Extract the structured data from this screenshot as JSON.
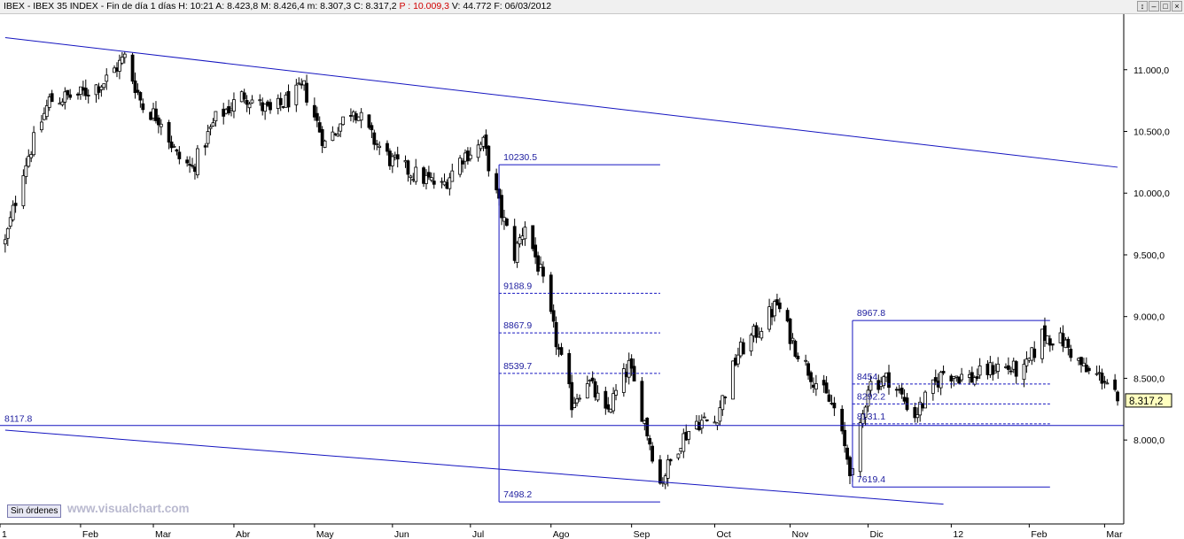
{
  "titlebar": {
    "parts": [
      {
        "text": "IBEX - IBEX 35 INDEX - Fin de día 1 días  H: 10:21  A: 8.423,8  M: 8.426,4  m: 8.307,3  C: 8.317,2  ",
        "color": "#000000"
      },
      {
        "text": "P : 10.009,3",
        "color": "#d00000"
      },
      {
        "text": "  V: 44.772  F: 06/03/2012",
        "color": "#000000"
      }
    ],
    "buttons": [
      "↕",
      "–",
      "□",
      "×"
    ]
  },
  "footer": {
    "sin_ordenes": "Sin órdenes",
    "watermark": "www.visualchart.com"
  },
  "colors": {
    "line": "#1515c0",
    "label": "#2020a0",
    "candle": "#000000",
    "last_price_bg": "#ffffc0"
  },
  "chart_data": {
    "type": "candlestick",
    "ylim": [
      7500,
      11500
    ],
    "y_ticks": [
      {
        "value": 11000,
        "label": "11.000,0"
      },
      {
        "value": 10500,
        "label": "10.500,0"
      },
      {
        "value": 10000,
        "label": "10.000,0"
      },
      {
        "value": 9500,
        "label": "9.500,0"
      },
      {
        "value": 9000,
        "label": "9.000,0"
      },
      {
        "value": 8500,
        "label": "8.500,0"
      },
      {
        "value": 8000,
        "label": "8.000,0"
      }
    ],
    "x_ticks": [
      {
        "label": "1",
        "date": "2011-01-03"
      },
      {
        "label": "Feb",
        "date": "2011-02-01"
      },
      {
        "label": "Mar",
        "date": "2011-03-01"
      },
      {
        "label": "Abr",
        "date": "2011-04-01"
      },
      {
        "label": "May",
        "date": "2011-05-02"
      },
      {
        "label": "Jun",
        "date": "2011-06-01"
      },
      {
        "label": "Jul",
        "date": "2011-07-01"
      },
      {
        "label": "Ago",
        "date": "2011-08-01"
      },
      {
        "label": "Sep",
        "date": "2011-09-01"
      },
      {
        "label": "Oct",
        "date": "2011-10-03"
      },
      {
        "label": "Nov",
        "date": "2011-11-01"
      },
      {
        "label": "Dic",
        "date": "2011-12-01"
      },
      {
        "label": "12",
        "date": "2012-01-02"
      },
      {
        "label": "Feb",
        "date": "2012-02-01"
      },
      {
        "label": "Mar",
        "date": "2012-03-01"
      }
    ],
    "last_price": {
      "value": 8317.2,
      "label": "8.317,2"
    },
    "horizontal_line": {
      "value": 8117.8,
      "label": "8117.8"
    },
    "trendlines": [
      {
        "from": [
          "2011-01-03",
          11260
        ],
        "to": [
          "2012-03-06",
          10210
        ]
      },
      {
        "from": [
          "2011-01-03",
          8080
        ],
        "to": [
          "2011-12-30",
          7480
        ]
      }
    ],
    "fibo_boxes": [
      {
        "from_date": "2011-07-12",
        "to_date": "2011-09-12",
        "high": 10230.5,
        "low": 7498.2,
        "high_label": "10230.5",
        "low_label": "7498.2",
        "levels": [
          {
            "value": 9188.9,
            "label": "9188.9"
          },
          {
            "value": 8867.9,
            "label": "8867.9"
          },
          {
            "value": 8539.7,
            "label": "8539.7"
          }
        ]
      },
      {
        "from_date": "2011-11-25",
        "to_date": "2012-02-09",
        "high": 8967.8,
        "low": 7619.4,
        "high_label": "8967.8",
        "low_label": "7619.4",
        "levels": [
          {
            "value": 8454,
            "label": "8454"
          },
          {
            "value": 8292.2,
            "label": "8292.2"
          },
          {
            "value": 8131.1,
            "label": "8131.1"
          }
        ]
      }
    ],
    "closes_anchor": [
      [
        "2011-01-03",
        9600
      ],
      [
        "2011-01-10",
        10200
      ],
      [
        "2011-01-20",
        10750
      ],
      [
        "2011-02-01",
        10800
      ],
      [
        "2011-02-10",
        10900
      ],
      [
        "2011-02-18",
        11100
      ],
      [
        "2011-02-25",
        10700
      ],
      [
        "2011-03-04",
        10600
      ],
      [
        "2011-03-10",
        10300
      ],
      [
        "2011-03-16",
        10200
      ],
      [
        "2011-03-25",
        10600
      ],
      [
        "2011-04-05",
        10800
      ],
      [
        "2011-04-15",
        10650
      ],
      [
        "2011-04-28",
        10850
      ],
      [
        "2011-05-06",
        10400
      ],
      [
        "2011-05-17",
        10700
      ],
      [
        "2011-05-24",
        10450
      ],
      [
        "2011-06-01",
        10250
      ],
      [
        "2011-06-10",
        10150
      ],
      [
        "2011-06-20",
        10050
      ],
      [
        "2011-06-28",
        10300
      ],
      [
        "2011-07-06",
        10400
      ],
      [
        "2011-07-12",
        9900
      ],
      [
        "2011-07-18",
        9500
      ],
      [
        "2011-07-22",
        9750
      ],
      [
        "2011-07-28",
        9350
      ],
      [
        "2011-08-03",
        8800
      ],
      [
        "2011-08-09",
        8300
      ],
      [
        "2011-08-15",
        8500
      ],
      [
        "2011-08-22",
        8200
      ],
      [
        "2011-08-31",
        8600
      ],
      [
        "2011-09-06",
        8150
      ],
      [
        "2011-09-12",
        7650
      ],
      [
        "2011-09-20",
        8000
      ],
      [
        "2011-09-26",
        8150
      ],
      [
        "2011-10-03",
        8150
      ],
      [
        "2011-10-12",
        8700
      ],
      [
        "2011-10-20",
        8900
      ],
      [
        "2011-10-27",
        9100
      ],
      [
        "2011-11-03",
        8750
      ],
      [
        "2011-11-10",
        8500
      ],
      [
        "2011-11-18",
        8250
      ],
      [
        "2011-11-25",
        7700
      ],
      [
        "2011-12-01",
        8450
      ],
      [
        "2011-12-09",
        8500
      ],
      [
        "2011-12-19",
        8200
      ],
      [
        "2011-12-30",
        8550
      ],
      [
        "2012-01-10",
        8500
      ],
      [
        "2012-01-20",
        8600
      ],
      [
        "2012-01-30",
        8550
      ],
      [
        "2012-02-06",
        8850
      ],
      [
        "2012-02-14",
        8800
      ],
      [
        "2012-02-23",
        8550
      ],
      [
        "2012-03-01",
        8500
      ],
      [
        "2012-03-06",
        8317
      ]
    ]
  }
}
